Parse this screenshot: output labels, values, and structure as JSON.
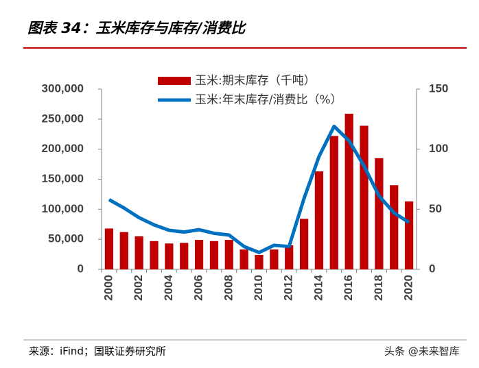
{
  "header": {
    "title": "图表 34：玉米库存与库存/消费比"
  },
  "chart_data": {
    "type": "bar_line",
    "categories": [
      "2000",
      null,
      "2002",
      null,
      "2004",
      null,
      "2006",
      null,
      "2008",
      null,
      "2010",
      null,
      "2012",
      null,
      "2014",
      null,
      "2016",
      null,
      "2018",
      null,
      "2020"
    ],
    "series": [
      {
        "name": "玉米:期末库存（千吨）",
        "type": "bar",
        "color": "#c00000",
        "values": [
          68000,
          62000,
          55000,
          47000,
          43000,
          44000,
          49000,
          47000,
          49000,
          33000,
          24000,
          33000,
          40000,
          84000,
          163000,
          222000,
          259000,
          239000,
          185000,
          140000,
          113000
        ]
      },
      {
        "name": "玉米:年末库存/消费比（%）",
        "type": "line",
        "axis": "y2",
        "color": "#0070c0",
        "values": [
          58,
          51,
          43,
          37,
          32.5,
          31,
          33,
          30,
          28.5,
          19,
          14,
          20,
          19,
          59,
          94,
          119,
          107,
          86,
          61,
          47,
          39
        ]
      }
    ],
    "ylim": [
      0,
      300000
    ],
    "yticks": [
      0,
      {
        "value": 50000,
        "label": "50,000"
      },
      {
        "value": 100000,
        "label": "100,000"
      },
      {
        "value": 150000,
        "label": "150,000"
      },
      {
        "value": 200000,
        "label": "200,000"
      },
      {
        "value": 250000,
        "label": "250,000"
      },
      {
        "value": 300000,
        "label": "300,000"
      }
    ],
    "y2lim": [
      0,
      150
    ],
    "y2ticks": [
      0,
      50,
      100,
      150
    ],
    "legend": "top"
  },
  "footer": {
    "source": "来源：iFind；国联证券研究所",
    "watermark": "头条 @未来智库"
  }
}
